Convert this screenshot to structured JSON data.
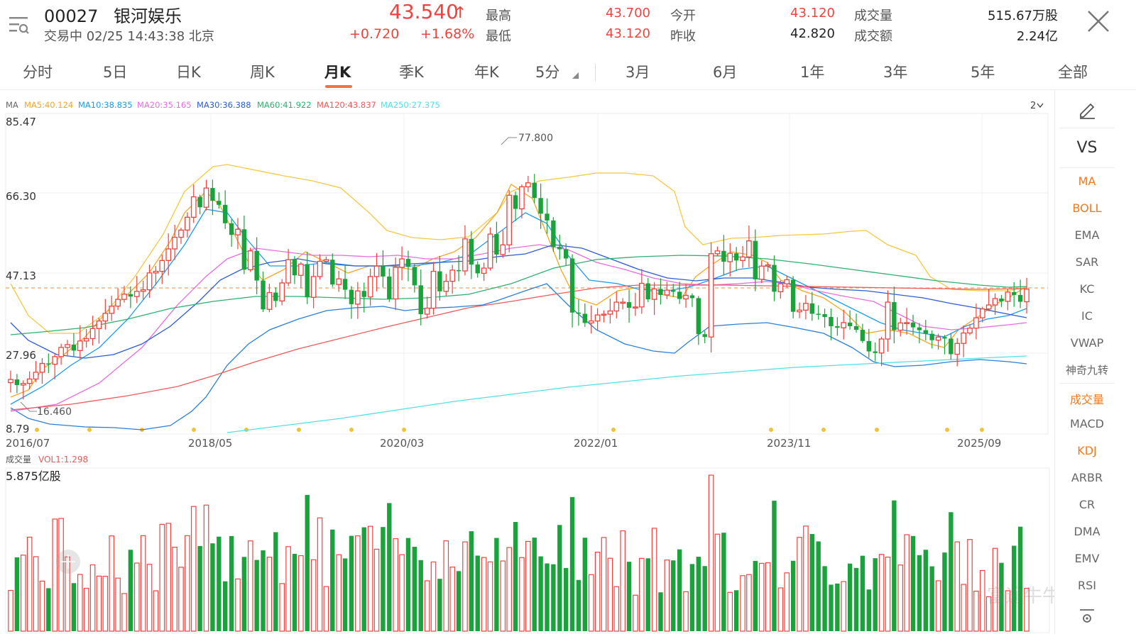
{
  "header": {
    "code": "00027",
    "name": "银河娱乐",
    "status_line": "交易中 02/25 14:43:38 北京",
    "price": "43.540",
    "price_arrow": "↑",
    "change": "+0.720",
    "change_pct": "+1.68%",
    "quotes": [
      {
        "label": "最高",
        "value": "43.700"
      },
      {
        "label": "最低",
        "value": "43.120"
      },
      {
        "label": "今开",
        "value": "43.120"
      },
      {
        "label": "昨收",
        "value": "42.820"
      },
      {
        "label": "成交量",
        "value": "515.67万股"
      },
      {
        "label": "成交额",
        "value": "2.24亿"
      }
    ]
  },
  "tabs": [
    "分时",
    "5日",
    "日K",
    "周K",
    "月K",
    "季K",
    "年K",
    "5分",
    "3月",
    "6月",
    "1年",
    "3年",
    "5年",
    "全部"
  ],
  "active_tab": "月K",
  "ma_legend": {
    "label": "MA",
    "items": [
      {
        "text": "MA5:40.124",
        "color": "#f5a623"
      },
      {
        "text": "MA10:38.835",
        "color": "#1e9be8"
      },
      {
        "text": "MA20:35.165",
        "color": "#e86ce0"
      },
      {
        "text": "MA30:36.388",
        "color": "#2e5cd6"
      },
      {
        "text": "MA60:41.922",
        "color": "#2eb070"
      },
      {
        "text": "MA120:43.837",
        "color": "#f05a5a"
      },
      {
        "text": "MA250:27.375",
        "color": "#4fe0e8"
      }
    ],
    "zoom": "2",
    "zoom_icon": "chevron-down-icon"
  },
  "price_axis": [
    "85.47",
    "66.30",
    "47.13",
    "27.96",
    "8.79"
  ],
  "date_axis": [
    "2016/07",
    "2018/05",
    "2020/03",
    "2022/01",
    "2023/11",
    "2025/09"
  ],
  "annotations": {
    "high": "77.800",
    "low": "16.460"
  },
  "volume": {
    "label": "成交量",
    "vol_label": "VOL1:1.298",
    "max_label": "5.875亿股"
  },
  "indicators": {
    "edit_icon": "pencil-icon",
    "vs": "VS",
    "main": [
      {
        "label": "MA",
        "active": true
      },
      {
        "label": "BOLL",
        "active": true
      },
      {
        "label": "EMA",
        "active": false
      },
      {
        "label": "SAR",
        "active": false
      },
      {
        "label": "KC",
        "active": false
      },
      {
        "label": "IC",
        "active": false
      },
      {
        "label": "VWAP",
        "active": false
      },
      {
        "label": "神奇九转",
        "active": false
      }
    ],
    "sub": [
      {
        "label": "成交量",
        "active": true
      },
      {
        "label": "MACD",
        "active": false
      },
      {
        "label": "KDJ",
        "active": true
      },
      {
        "label": "ARBR",
        "active": false
      },
      {
        "label": "CR",
        "active": false
      },
      {
        "label": "DMA",
        "active": false
      },
      {
        "label": "EMV",
        "active": false
      },
      {
        "label": "RSI",
        "active": false
      }
    ]
  },
  "watermark": "富途牛牛",
  "colors": {
    "up": "#f0433f",
    "down": "#1aa33c",
    "accent": "#f07a1d",
    "ref_line": "#f5a05a"
  },
  "chart_data": {
    "type": "candlestick",
    "interval": "monthly",
    "last_close": 43.54,
    "ylim": [
      8.79,
      85.47
    ],
    "price_high": 77.8,
    "price_low": 16.46,
    "close_series": [
      21.0,
      19.6,
      20.0,
      21.1,
      22.8,
      25.0,
      24.8,
      26.7,
      29.0,
      29.7,
      28.2,
      30.6,
      31.2,
      33.7,
      35.6,
      37.5,
      39.3,
      41.0,
      42.3,
      41.7,
      43.0,
      43.4,
      47.6,
      48.0,
      50.7,
      53.6,
      56.5,
      58.3,
      61.5,
      66.6,
      64.0,
      68.8,
      65.6,
      64.6,
      60.0,
      57.1,
      58.5,
      48.4,
      53.1,
      45.7,
      38.5,
      42.7,
      40.6,
      45.1,
      50.9,
      47.0,
      49.8,
      41.5,
      46.7,
      50.5,
      50.9,
      44.7,
      46.1,
      43.4,
      39.8,
      43.1,
      41.6,
      46.7,
      49.3,
      46.7,
      41.1,
      49.0,
      51.1,
      49.1,
      44.5,
      37.3,
      38.8,
      48.0,
      43.0,
      45.5,
      48.3,
      48.1,
      56.1,
      49.7,
      47.5,
      48.8,
      57.3,
      52.2,
      54.6,
      67.0,
      63.6,
      69.1,
      70.1,
      66.3,
      62.4,
      60.7,
      54.1,
      53.5,
      51.2,
      37.7,
      37.4,
      35.1,
      35.6,
      37.1,
      37.3,
      38.1,
      40.3,
      40.3,
      38.9,
      39.1,
      45.0,
      41.0,
      43.6,
      42.1,
      43.3,
      42.9,
      41.1,
      42.0,
      41.3,
      32.3,
      31.6,
      52.4,
      53.1,
      50.4,
      52.5,
      50.7,
      51.6,
      55.6,
      46.0,
      49.3,
      49.6,
      42.9,
      44.9,
      45.9,
      37.9,
      38.3,
      40.0,
      37.4,
      37.3,
      36.6,
      34.3,
      33.9,
      35.2,
      34.3,
      33.4,
      30.6,
      28.0,
      27.6,
      31.1,
      40.3,
      33.3,
      35.1,
      35.2,
      34.0,
      33.3,
      32.4,
      30.8,
      31.6,
      31.2,
      27.3,
      30.0,
      32.6,
      33.8,
      36.4,
      38.6,
      39.6,
      41.2,
      40.5,
      42.8,
      42.1,
      40.4,
      43.54
    ],
    "x_range": [
      "2016/07",
      "2025/09"
    ]
  }
}
